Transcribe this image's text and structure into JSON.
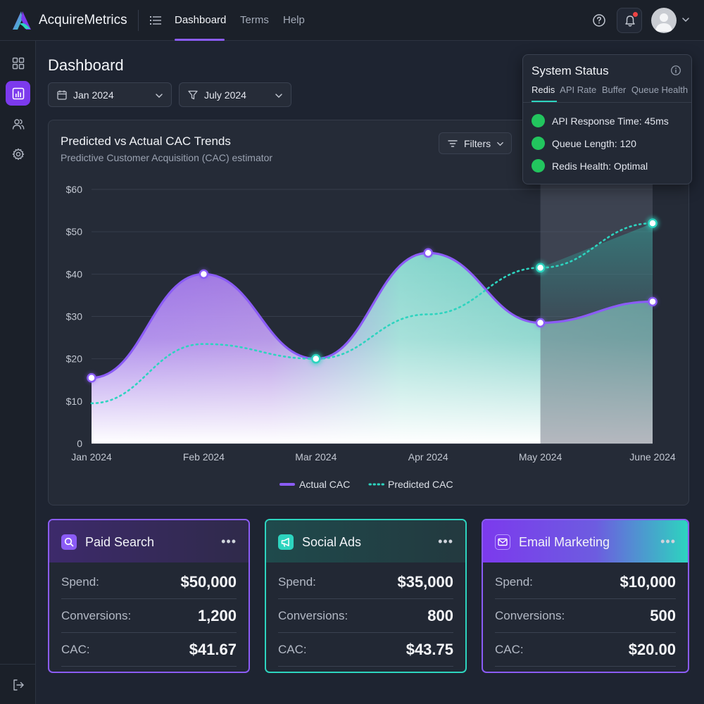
{
  "app": {
    "name": "AcquireMetrics"
  },
  "nav": {
    "items": [
      {
        "label": "Dashboard"
      },
      {
        "label": "Terms"
      },
      {
        "label": "Help"
      }
    ]
  },
  "page": {
    "title": "Dashboard"
  },
  "filters": {
    "start_date": "Jan 2024",
    "end_date": "July 2024"
  },
  "chart_card": {
    "title": "Predicted vs Actual CAC Trends",
    "subtitle": "Predictive Customer Acquisition (CAC) estimator",
    "filters_label": "Filters"
  },
  "chart_data": {
    "type": "area",
    "title": "Predicted vs Actual CAC Trends",
    "subtitle": "Predictive Customer Acquisition (CAC) estimator",
    "categories": [
      "Jan 2024",
      "Feb 2024",
      "Mar 2024",
      "Apr 2024",
      "May 2024",
      "June 2024"
    ],
    "yticks": [
      "0",
      "$10",
      "$20",
      "$30",
      "$40",
      "$50",
      "$60"
    ],
    "ylim": [
      0,
      60
    ],
    "series": [
      {
        "name": "Actual CAC",
        "values": [
          15.5,
          40,
          20,
          45,
          28.5,
          33.5
        ],
        "color": "#8b5cf6",
        "style": "solid"
      },
      {
        "name": "Predicted CAC",
        "values": [
          9.5,
          23.5,
          20,
          30.5,
          41.5,
          52
        ],
        "color": "#2dd4bf",
        "style": "dotted"
      }
    ],
    "highlight_from_index": 4,
    "legend": "bottom-center",
    "grid": true
  },
  "status": {
    "title": "System Status",
    "tabs": [
      "Redis",
      "API Rate",
      "Buffer",
      "Queue Health"
    ],
    "items": [
      {
        "text": "API Response Time: 45ms",
        "color": "#22c55e"
      },
      {
        "text": "Queue Length: 120",
        "color": "#22c55e"
      },
      {
        "text": "Redis Health: Optimal",
        "color": "#22c55e"
      }
    ]
  },
  "channels": [
    {
      "name": "Paid Search",
      "icon": "search-icon",
      "accent": "#8b5cf6",
      "rows": [
        {
          "label": "Spend:",
          "value": "$50,000"
        },
        {
          "label": "Conversions:",
          "value": "1,200"
        },
        {
          "label": "CAC:",
          "value": "$41.67"
        }
      ]
    },
    {
      "name": "Social Ads",
      "icon": "megaphone-icon",
      "accent": "#2dd4bf",
      "rows": [
        {
          "label": "Spend:",
          "value": "$35,000"
        },
        {
          "label": "Conversions:",
          "value": "800"
        },
        {
          "label": "CAC:",
          "value": "$43.75"
        }
      ]
    },
    {
      "name": "Email Marketing",
      "icon": "mail-icon",
      "accent": "#8b5cf6",
      "rows": [
        {
          "label": "Spend:",
          "value": "$10,000"
        },
        {
          "label": "Conversions:",
          "value": "500"
        },
        {
          "label": "CAC:",
          "value": "$20.00"
        }
      ]
    }
  ]
}
